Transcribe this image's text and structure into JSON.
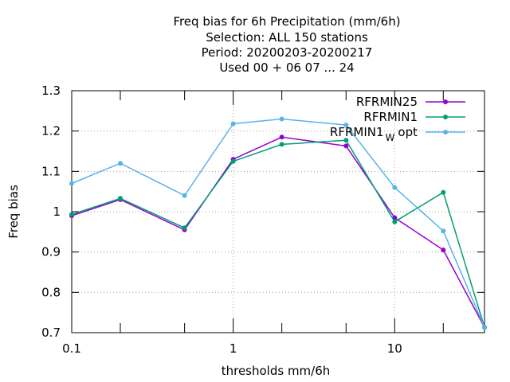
{
  "chart_data": {
    "type": "line",
    "title": [
      "Freq bias  for 6h Precipitation (mm/6h)",
      "Selection: ALL    150 stations",
      "Period: 20200203-20200217",
      "Used  00 + 06 07 ... 24"
    ],
    "xlabel": "thresholds mm/6h",
    "ylabel": "Freq bias",
    "x_scale": "log",
    "xlim": [
      0.1,
      36
    ],
    "ylim": [
      0.7,
      1.3
    ],
    "grid": true,
    "legend_position": "top-right",
    "x_ticks": [
      {
        "value": 0.1,
        "label": "0.1"
      },
      {
        "value": 1,
        "label": "1"
      },
      {
        "value": 10,
        "label": "10"
      }
    ],
    "x_minor_ticks": [
      0.2,
      0.5,
      2,
      5,
      20
    ],
    "y_ticks": [
      {
        "value": 0.7,
        "label": "0.7"
      },
      {
        "value": 0.8,
        "label": "0.8"
      },
      {
        "value": 0.9,
        "label": "0.9"
      },
      {
        "value": 1.0,
        "label": "1"
      },
      {
        "value": 1.1,
        "label": "1.1"
      },
      {
        "value": 1.2,
        "label": "1.2"
      },
      {
        "value": 1.3,
        "label": "1.3"
      }
    ],
    "x": [
      0.1,
      0.2,
      0.5,
      1,
      2,
      5,
      10,
      20,
      36
    ],
    "series": [
      {
        "name": "RFRMIN25",
        "label_main": "RFRMIN25",
        "label_sub": "",
        "label_tail": "",
        "color": "#9400d3",
        "values": [
          0.99,
          1.03,
          0.955,
          1.13,
          1.185,
          1.163,
          0.985,
          0.905,
          0.713
        ]
      },
      {
        "name": "RFRMIN1",
        "label_main": "RFRMIN1",
        "label_sub": "",
        "label_tail": "",
        "color": "#009e73",
        "values": [
          0.993,
          1.033,
          0.96,
          1.125,
          1.167,
          1.177,
          0.975,
          1.048,
          0.713
        ]
      },
      {
        "name": "RFRMIN1 W opt",
        "label_main": "RFRMIN1",
        "label_sub": "W",
        "label_tail": "opt",
        "color": "#56b4e9",
        "values": [
          1.07,
          1.12,
          1.04,
          1.218,
          1.23,
          1.215,
          1.06,
          0.952,
          0.713
        ]
      }
    ]
  }
}
